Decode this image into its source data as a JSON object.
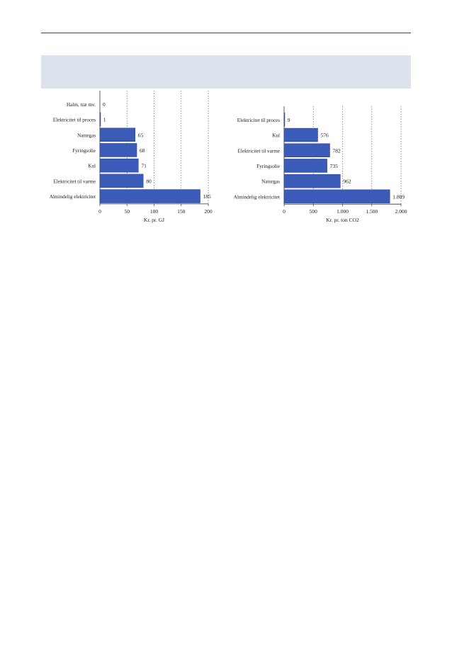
{
  "chart_data": [
    {
      "type": "bar",
      "orientation": "horizontal",
      "categories": [
        "Halm, træ mv.",
        "Elektricitet til proces",
        "Naturgas",
        "Fyringsolie",
        "Kul",
        "Elektricitet til varme",
        "Almindelig elektricitet"
      ],
      "values": [
        0,
        1,
        65,
        68,
        71,
        80,
        185
      ],
      "value_labels": [
        "0",
        "1",
        "65",
        "68",
        "71",
        "80",
        "185"
      ],
      "xlabel": "Kr. pr. GJ",
      "xlim": [
        0,
        200
      ],
      "xticks": [
        0,
        50,
        100,
        150,
        200
      ],
      "xtick_labels": [
        "0",
        "50",
        "100",
        "150",
        "200"
      ],
      "grid": "vertical dotted",
      "bar_color": "#3a5bb8"
    },
    {
      "type": "bar",
      "orientation": "horizontal",
      "categories": [
        "Elektricitet til proces",
        "Kul",
        "Elektricitet til varme",
        "Fyringsolie",
        "Naturgas",
        "Almindelig elektricitet"
      ],
      "values": [
        9,
        576,
        782,
        735,
        962,
        1809
      ],
      "value_labels": [
        "9",
        "576",
        "782",
        "735",
        "962",
        "1.809"
      ],
      "xlabel": "Kr. pr. ton CO2",
      "xlim": [
        0,
        2000
      ],
      "xticks": [
        0,
        500,
        1000,
        1500,
        2000
      ],
      "xtick_labels": [
        "0",
        "500",
        "1.000",
        "1.500",
        "2.000"
      ],
      "grid": "vertical dotted",
      "bar_color": "#3a5bb8"
    }
  ]
}
